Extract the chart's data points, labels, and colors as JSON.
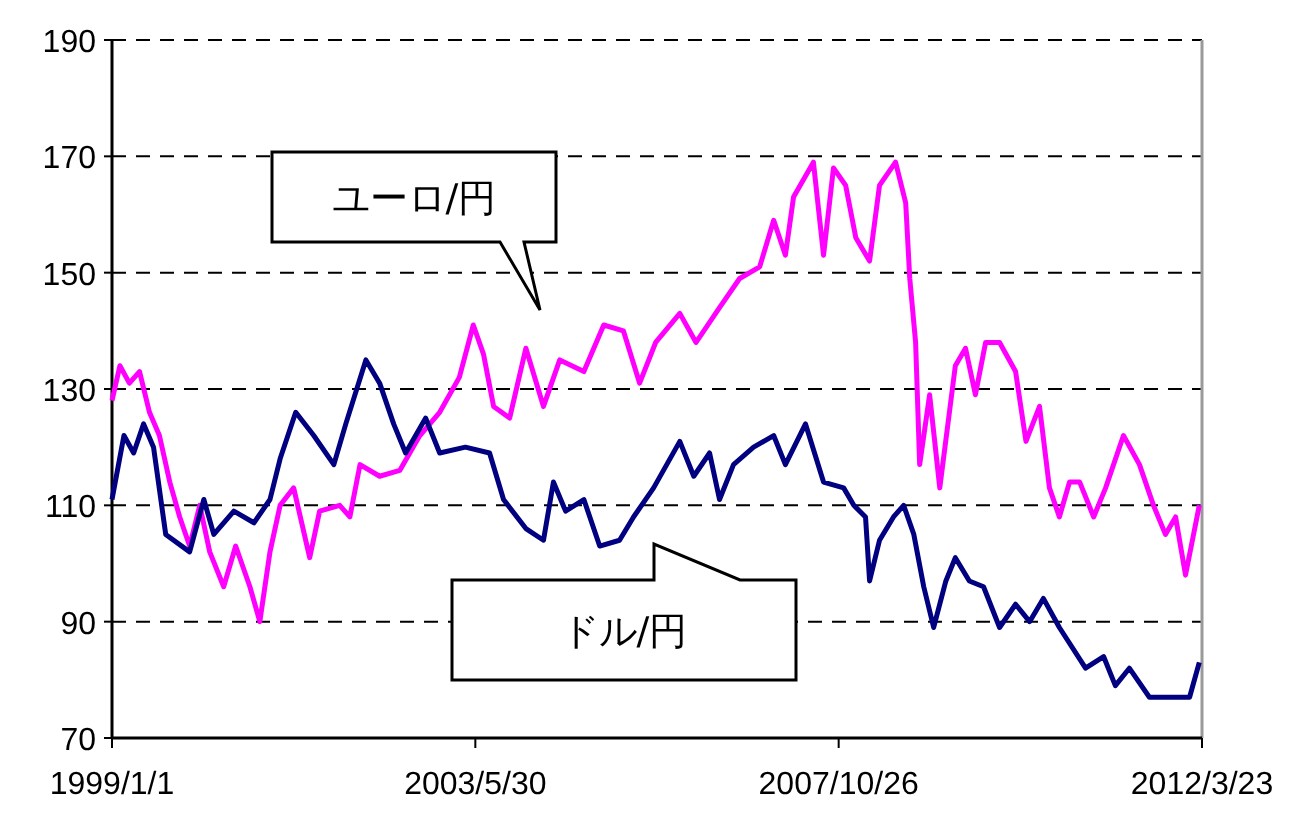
{
  "chart_data": {
    "type": "line",
    "xlim": [
      "1999-01-01",
      "2012-03-23"
    ],
    "xticks": [
      {
        "value": "1999-01-01",
        "label": "1999/1/1"
      },
      {
        "value": "2003-05-30",
        "label": "2003/5/30"
      },
      {
        "value": "2007-10-26",
        "label": "2007/10/26"
      },
      {
        "value": "2012-03-23",
        "label": "2012/3/23"
      }
    ],
    "ylim": [
      70,
      190
    ],
    "yticks": [
      70,
      90,
      110,
      130,
      150,
      170,
      190
    ],
    "grid": "y",
    "line_style": "solid",
    "series": [
      {
        "name": "ユーロ/円",
        "color": "#ff00ff",
        "x": [
          "1999-01-01",
          "1999-02-05",
          "1999-03-19",
          "1999-05-03",
          "1999-06-16",
          "1999-07-30",
          "1999-09-14",
          "1999-10-28",
          "1999-12-11",
          "2000-01-25",
          "2000-03-09",
          "2000-05-10",
          "2000-07-02",
          "2000-09-03",
          "2000-10-17",
          "2000-12-01",
          "2001-01-15",
          "2001-03-16",
          "2001-05-26",
          "2001-07-09",
          "2001-10-06",
          "2001-11-20",
          "2002-01-04",
          "2002-04-01",
          "2002-06-29",
          "2002-09-26",
          "2002-12-23",
          "2003-03-20",
          "2003-05-21",
          "2003-07-05",
          "2003-08-19",
          "2003-10-29",
          "2004-01-09",
          "2004-03-27",
          "2004-06-07",
          "2004-09-22",
          "2004-12-19",
          "2005-03-16",
          "2005-05-27",
          "2005-08-06",
          "2005-11-21",
          "2006-02-01",
          "2006-05-16",
          "2006-08-13",
          "2006-11-10",
          "2007-01-11",
          "2007-03-04",
          "2007-04-09",
          "2007-07-06",
          "2007-08-20",
          "2007-10-03",
          "2007-11-26",
          "2008-01-10",
          "2008-03-11",
          "2008-04-24",
          "2008-07-04",
          "2008-08-18",
          "2008-09-05",
          "2008-10-01",
          "2008-10-19",
          "2008-12-02",
          "2009-01-16",
          "2009-03-26",
          "2009-05-10",
          "2009-06-23",
          "2009-08-07",
          "2009-10-08",
          "2009-12-18",
          "2010-02-02",
          "2010-04-03",
          "2010-05-17",
          "2010-06-30",
          "2010-08-14",
          "2010-09-28",
          "2010-11-29",
          "2011-01-21",
          "2011-04-10",
          "2011-06-20",
          "2011-08-21",
          "2011-10-13",
          "2011-11-27",
          "2012-01-10",
          "2012-03-11"
        ],
        "values": [
          128,
          134,
          131,
          133,
          126,
          122,
          114,
          108,
          103,
          110,
          102,
          96,
          103,
          96,
          90,
          102,
          110,
          113,
          101,
          109,
          110,
          108,
          117,
          115,
          116,
          122,
          126,
          132,
          141,
          136,
          127,
          125,
          137,
          127,
          135,
          133,
          141,
          140,
          131,
          138,
          143,
          138,
          144,
          149,
          151,
          159,
          153,
          163,
          169,
          153,
          168,
          165,
          156,
          152,
          165,
          169,
          162,
          149,
          138,
          117,
          129,
          113,
          134,
          137,
          129,
          138,
          138,
          133,
          121,
          127,
          113,
          108,
          114,
          114,
          108,
          113,
          122,
          117,
          110,
          105,
          108,
          98,
          110
        ]
      },
      {
        "name": "ドル/円",
        "color": "#000080",
        "x": [
          "1999-01-01",
          "1999-02-23",
          "1999-04-07",
          "1999-05-21",
          "1999-07-04",
          "1999-08-27",
          "1999-12-11",
          "2000-02-12",
          "2000-03-27",
          "2000-06-24",
          "2000-09-21",
          "2000-12-01",
          "2001-01-15",
          "2001-03-25",
          "2001-06-13",
          "2001-09-10",
          "2001-11-02",
          "2002-01-30",
          "2002-04-01",
          "2002-06-02",
          "2002-07-25",
          "2002-10-22",
          "2002-12-23",
          "2003-04-16",
          "2003-08-01",
          "2003-10-02",
          "2004-01-09",
          "2004-03-27",
          "2004-05-10",
          "2004-07-03",
          "2004-09-22",
          "2004-12-01",
          "2005-02-27",
          "2005-04-30",
          "2005-07-28",
          "2005-11-21",
          "2006-01-22",
          "2006-04-02",
          "2006-05-16",
          "2006-07-17",
          "2006-10-14",
          "2007-01-11",
          "2007-03-04",
          "2007-06-01",
          "2007-08-20",
          "2007-11-17",
          "2008-01-01",
          "2008-02-22",
          "2008-03-11",
          "2008-04-24",
          "2008-06-25",
          "2008-08-09",
          "2008-09-23",
          "2008-11-06",
          "2008-12-20",
          "2009-02-12",
          "2009-03-26",
          "2009-05-27",
          "2009-07-29",
          "2009-10-08",
          "2009-12-18",
          "2010-02-18",
          "2010-04-20",
          "2010-06-30",
          "2010-10-24",
          "2011-01-12",
          "2011-03-05",
          "2011-05-06",
          "2011-08-03",
          "2011-10-13",
          "2012-01-28",
          "2012-03-11"
        ],
        "values": [
          111,
          122,
          119,
          124,
          120,
          105,
          102,
          111,
          105,
          109,
          107,
          111,
          118,
          126,
          122,
          117,
          124,
          135,
          131,
          124,
          119,
          125,
          119,
          120,
          119,
          111,
          106,
          104,
          114,
          109,
          111,
          103,
          104,
          108,
          113,
          121,
          115,
          119,
          111,
          117,
          120,
          122,
          117,
          124,
          114,
          113,
          110,
          108,
          97,
          104,
          108,
          110,
          105,
          96,
          89,
          97,
          101,
          97,
          96,
          89,
          93,
          90,
          94,
          89,
          82,
          84,
          79,
          82,
          77,
          77,
          77,
          83
        ]
      }
    ]
  }
}
